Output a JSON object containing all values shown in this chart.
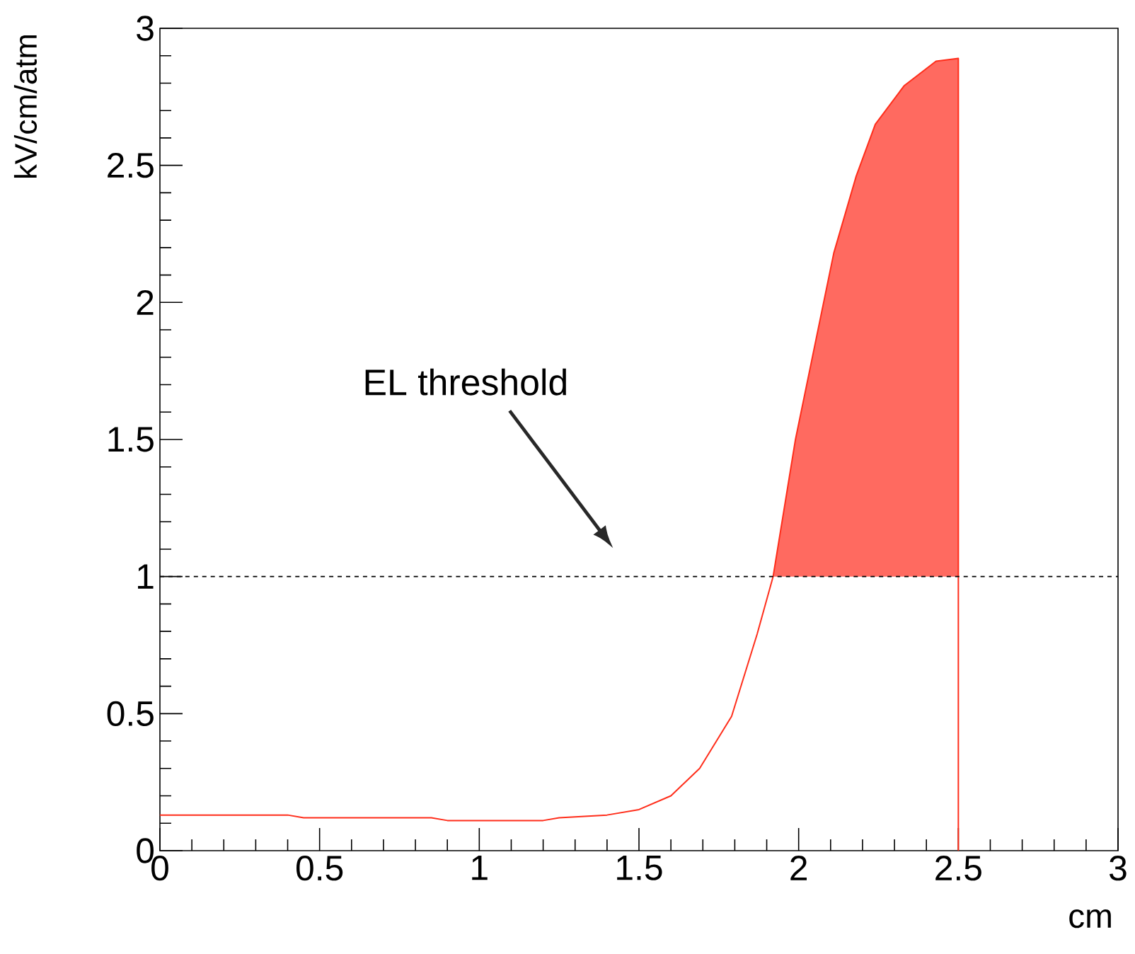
{
  "chart_data": {
    "type": "line",
    "xlabel": "cm",
    "ylabel": "kV/cm/atm",
    "xlim": [
      0,
      3
    ],
    "ylim": [
      0,
      3
    ],
    "xticks": [
      0,
      0.5,
      1,
      1.5,
      2,
      2.5,
      3
    ],
    "yticks": [
      0,
      0.5,
      1,
      1.5,
      2,
      2.5,
      3
    ],
    "grid": false,
    "marker": "none",
    "series": [
      {
        "color": "#ff2d1a",
        "x": [
          0,
          0.4,
          0.45,
          0.85,
          0.9,
          1.2,
          1.25,
          1.4,
          1.5,
          1.6,
          1.69,
          1.79,
          1.87,
          1.92,
          1.99,
          2.05,
          2.11,
          2.18,
          2.24,
          2.33,
          2.43,
          2.5,
          2.5
        ],
        "values": [
          0.13,
          0.13,
          0.12,
          0.12,
          0.11,
          0.11,
          0.12,
          0.13,
          0.15,
          0.2,
          0.3,
          0.49,
          0.79,
          1.0,
          1.5,
          1.84,
          2.18,
          2.46,
          2.65,
          2.79,
          2.88,
          2.89,
          0
        ]
      },
      {
        "type": "area",
        "color": "#ff6a60",
        "x": [
          1.92,
          1.99,
          2.05,
          2.11,
          2.18,
          2.24,
          2.33,
          2.43,
          2.5
        ],
        "values": [
          1.0,
          1.5,
          1.84,
          2.18,
          2.46,
          2.65,
          2.79,
          2.88,
          2.89
        ]
      }
    ],
    "ref_lines": [
      {
        "axis": "y",
        "value": 1,
        "line_style": "dashed",
        "color": "#000000"
      }
    ],
    "annotations": [
      "EL threshold"
    ]
  }
}
